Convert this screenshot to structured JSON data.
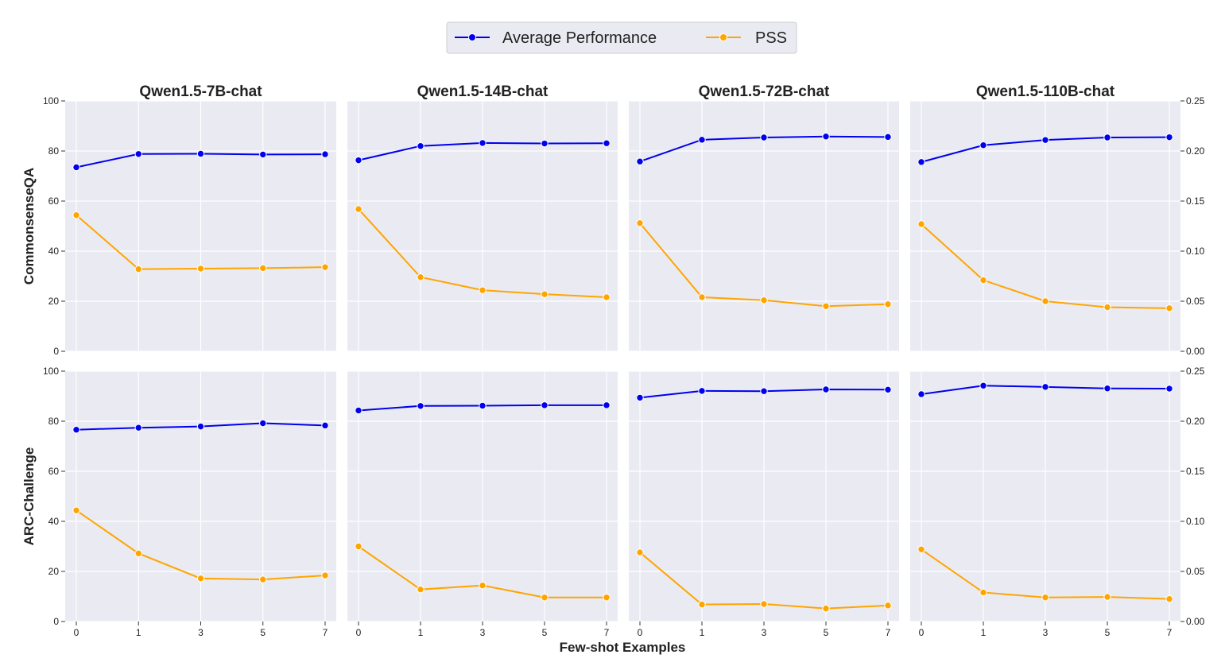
{
  "chart_data": {
    "type": "line",
    "x_categories": [
      "0",
      "1",
      "3",
      "5",
      "7"
    ],
    "xlabel": "Few-shot Examples",
    "columns": [
      "Qwen1.5-7B-chat",
      "Qwen1.5-14B-chat",
      "Qwen1.5-72B-chat",
      "Qwen1.5-110B-chat"
    ],
    "rows": [
      "CommonsenseQA",
      "ARC-Challenge"
    ],
    "left_axis": {
      "ylim": [
        0,
        100
      ],
      "ticks": [
        "0",
        "20",
        "40",
        "60",
        "80",
        "100"
      ]
    },
    "right_axis": {
      "ylim": [
        0,
        0.25
      ],
      "ticks": [
        "0.00",
        "0.05",
        "0.10",
        "0.15",
        "0.20",
        "0.25"
      ]
    },
    "legend": {
      "position": "top-center",
      "entries": [
        {
          "name": "Average Performance",
          "color": "#0000ee"
        },
        {
          "name": "PSS",
          "color": "#ffa500"
        }
      ]
    },
    "grid": true,
    "panels": [
      {
        "row": "CommonsenseQA",
        "model": "Qwen1.5-7B-chat",
        "average_performance": [
          73.5,
          78.8,
          78.9,
          78.6,
          78.7
        ],
        "pss": [
          0.136,
          0.082,
          0.0825,
          0.083,
          0.084
        ]
      },
      {
        "row": "CommonsenseQA",
        "model": "Qwen1.5-14B-chat",
        "average_performance": [
          76.3,
          82.0,
          83.2,
          83.0,
          83.1
        ],
        "pss": [
          0.142,
          0.074,
          0.061,
          0.057,
          0.054
        ]
      },
      {
        "row": "CommonsenseQA",
        "model": "Qwen1.5-72B-chat",
        "average_performance": [
          75.8,
          84.5,
          85.4,
          85.8,
          85.6
        ],
        "pss": [
          0.128,
          0.054,
          0.051,
          0.045,
          0.047
        ]
      },
      {
        "row": "CommonsenseQA",
        "model": "Qwen1.5-110B-chat",
        "average_performance": [
          75.6,
          82.3,
          84.4,
          85.4,
          85.5
        ],
        "pss": [
          0.127,
          0.071,
          0.05,
          0.044,
          0.043
        ]
      },
      {
        "row": "ARC-Challenge",
        "model": "Qwen1.5-7B-chat",
        "average_performance": [
          76.6,
          77.4,
          77.9,
          79.2,
          78.3
        ],
        "pss": [
          0.111,
          0.068,
          0.043,
          0.042,
          0.046
        ]
      },
      {
        "row": "ARC-Challenge",
        "model": "Qwen1.5-14B-chat",
        "average_performance": [
          84.3,
          86.1,
          86.2,
          86.4,
          86.4
        ],
        "pss": [
          0.075,
          0.032,
          0.036,
          0.024,
          0.024
        ]
      },
      {
        "row": "ARC-Challenge",
        "model": "Qwen1.5-72B-chat",
        "average_performance": [
          89.4,
          92.1,
          92.0,
          92.7,
          92.6
        ],
        "pss": [
          0.069,
          0.017,
          0.0175,
          0.013,
          0.016
        ]
      },
      {
        "row": "ARC-Challenge",
        "model": "Qwen1.5-110B-chat",
        "average_performance": [
          90.8,
          94.2,
          93.7,
          93.1,
          93.0
        ],
        "pss": [
          0.072,
          0.029,
          0.024,
          0.0245,
          0.0225
        ]
      }
    ]
  }
}
